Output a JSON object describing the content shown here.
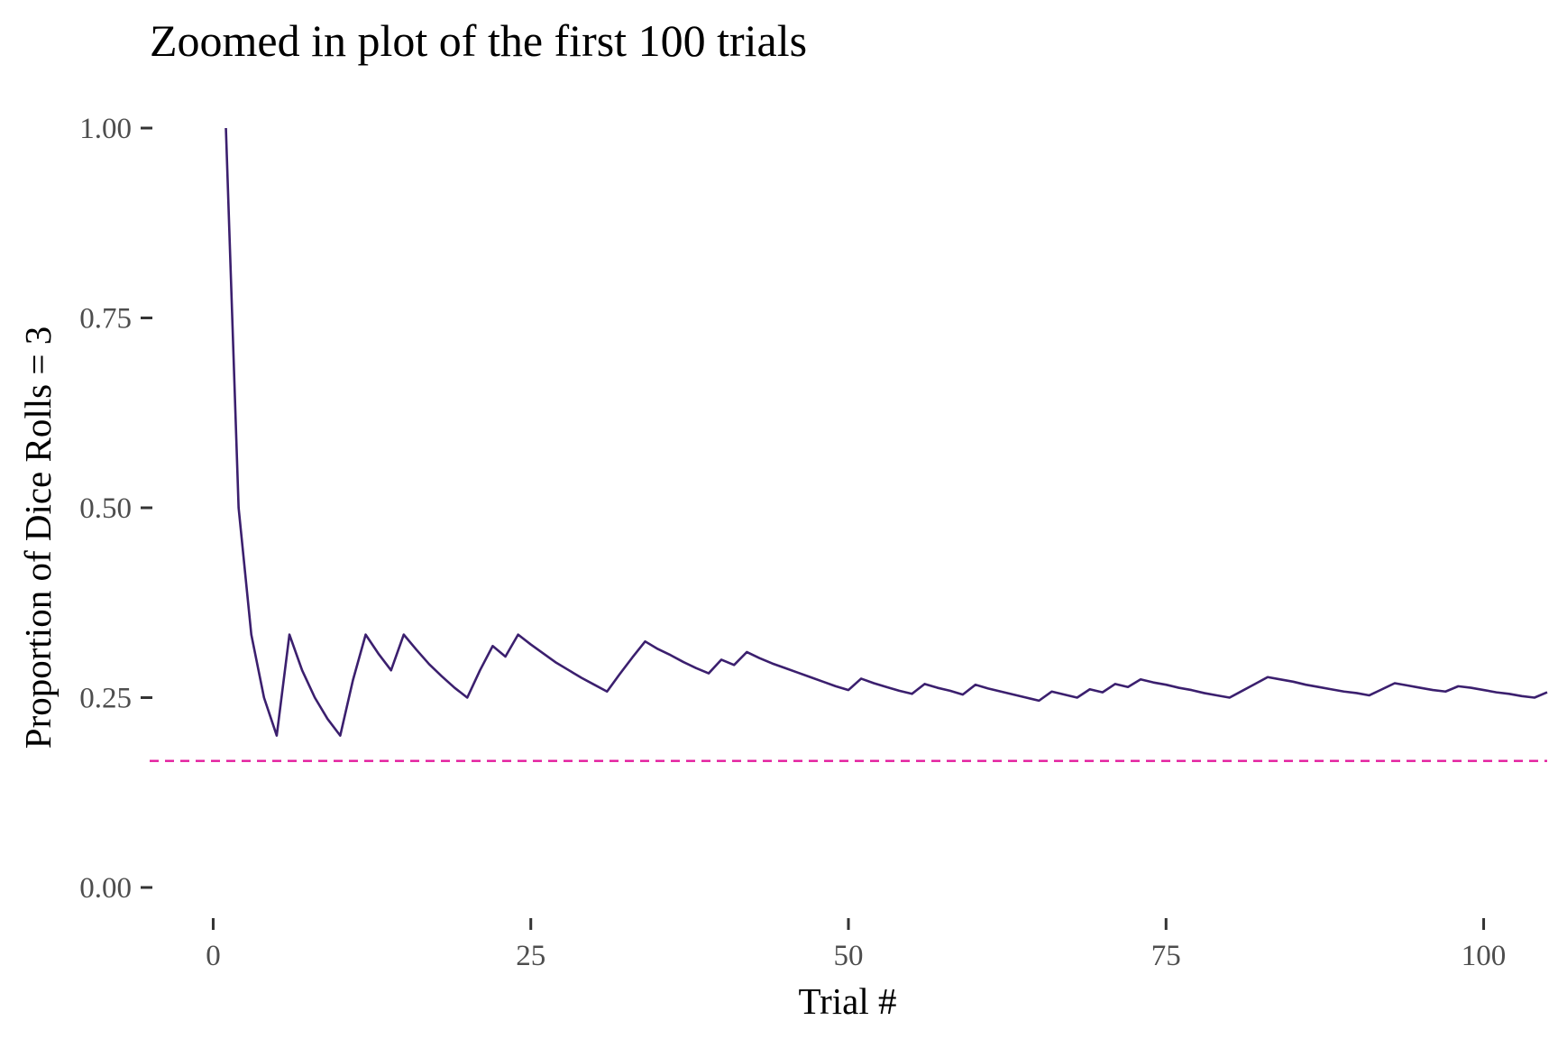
{
  "chart_data": {
    "type": "line",
    "title": "Zoomed in plot of the first 100 trials",
    "xlabel": "Trial #",
    "ylabel": "Proportion of Dice Rolls = 3",
    "xlim": [
      -5,
      105
    ],
    "ylim": [
      0,
      1
    ],
    "x_ticks": [
      0,
      25,
      50,
      75,
      100
    ],
    "y_ticks": [
      0,
      0.25,
      0.5,
      0.75,
      1.0
    ],
    "x_tick_labels": [
      "0",
      "25",
      "50",
      "75",
      "100"
    ],
    "y_tick_labels": [
      "0.00",
      "0.25",
      "0.50",
      "0.75",
      "1.00"
    ],
    "grid": false,
    "legend": "none",
    "series": [
      {
        "color": "#3b1f6e",
        "points": [
          [
            1,
            1.0
          ],
          [
            2,
            0.5
          ],
          [
            3,
            0.333
          ],
          [
            4,
            0.25
          ],
          [
            5,
            0.2
          ],
          [
            6,
            0.333
          ],
          [
            7,
            0.286
          ],
          [
            8,
            0.25
          ],
          [
            9,
            0.222
          ],
          [
            10,
            0.2
          ],
          [
            11,
            0.273
          ],
          [
            12,
            0.333
          ],
          [
            13,
            0.308
          ],
          [
            14,
            0.286
          ],
          [
            15,
            0.333
          ],
          [
            16,
            0.313
          ],
          [
            17,
            0.294
          ],
          [
            18,
            0.278
          ],
          [
            19,
            0.263
          ],
          [
            20,
            0.25
          ],
          [
            21,
            0.286
          ],
          [
            22,
            0.318
          ],
          [
            23,
            0.304
          ],
          [
            24,
            0.333
          ],
          [
            25,
            0.32
          ],
          [
            26,
            0.308
          ],
          [
            27,
            0.296
          ],
          [
            28,
            0.286
          ],
          [
            29,
            0.276
          ],
          [
            30,
            0.267
          ],
          [
            31,
            0.258
          ],
          [
            32,
            0.281
          ],
          [
            33,
            0.303
          ],
          [
            34,
            0.324
          ],
          [
            35,
            0.314
          ],
          [
            36,
            0.306
          ],
          [
            37,
            0.297
          ],
          [
            38,
            0.289
          ],
          [
            39,
            0.282
          ],
          [
            40,
            0.3
          ],
          [
            41,
            0.293
          ],
          [
            42,
            0.31
          ],
          [
            43,
            0.302
          ],
          [
            44,
            0.295
          ],
          [
            45,
            0.289
          ],
          [
            46,
            0.283
          ],
          [
            47,
            0.277
          ],
          [
            48,
            0.271
          ],
          [
            49,
            0.265
          ],
          [
            50,
            0.26
          ],
          [
            51,
            0.275
          ],
          [
            52,
            0.269
          ],
          [
            53,
            0.264
          ],
          [
            54,
            0.259
          ],
          [
            55,
            0.255
          ],
          [
            56,
            0.268
          ],
          [
            57,
            0.263
          ],
          [
            58,
            0.259
          ],
          [
            59,
            0.254
          ],
          [
            60,
            0.267
          ],
          [
            61,
            0.262
          ],
          [
            62,
            0.258
          ],
          [
            63,
            0.254
          ],
          [
            64,
            0.25
          ],
          [
            65,
            0.246
          ],
          [
            66,
            0.258
          ],
          [
            67,
            0.254
          ],
          [
            68,
            0.25
          ],
          [
            69,
            0.261
          ],
          [
            70,
            0.257
          ],
          [
            71,
            0.268
          ],
          [
            72,
            0.264
          ],
          [
            73,
            0.274
          ],
          [
            74,
            0.27
          ],
          [
            75,
            0.267
          ],
          [
            76,
            0.263
          ],
          [
            77,
            0.26
          ],
          [
            78,
            0.256
          ],
          [
            79,
            0.253
          ],
          [
            80,
            0.25
          ],
          [
            81,
            0.259
          ],
          [
            82,
            0.268
          ],
          [
            83,
            0.277
          ],
          [
            84,
            0.274
          ],
          [
            85,
            0.271
          ],
          [
            86,
            0.267
          ],
          [
            87,
            0.264
          ],
          [
            88,
            0.261
          ],
          [
            89,
            0.258
          ],
          [
            90,
            0.256
          ],
          [
            91,
            0.253
          ],
          [
            92,
            0.261
          ],
          [
            93,
            0.269
          ],
          [
            94,
            0.266
          ],
          [
            95,
            0.263
          ],
          [
            96,
            0.26
          ],
          [
            97,
            0.258
          ],
          [
            98,
            0.265
          ],
          [
            99,
            0.263
          ],
          [
            100,
            0.26
          ],
          [
            101,
            0.257
          ],
          [
            102,
            0.255
          ],
          [
            103,
            0.252
          ],
          [
            104,
            0.25
          ],
          [
            105,
            0.257
          ]
        ]
      }
    ],
    "reference_line": {
      "y": 0.1667,
      "style": "dashed",
      "color": "#e31a9c"
    }
  }
}
